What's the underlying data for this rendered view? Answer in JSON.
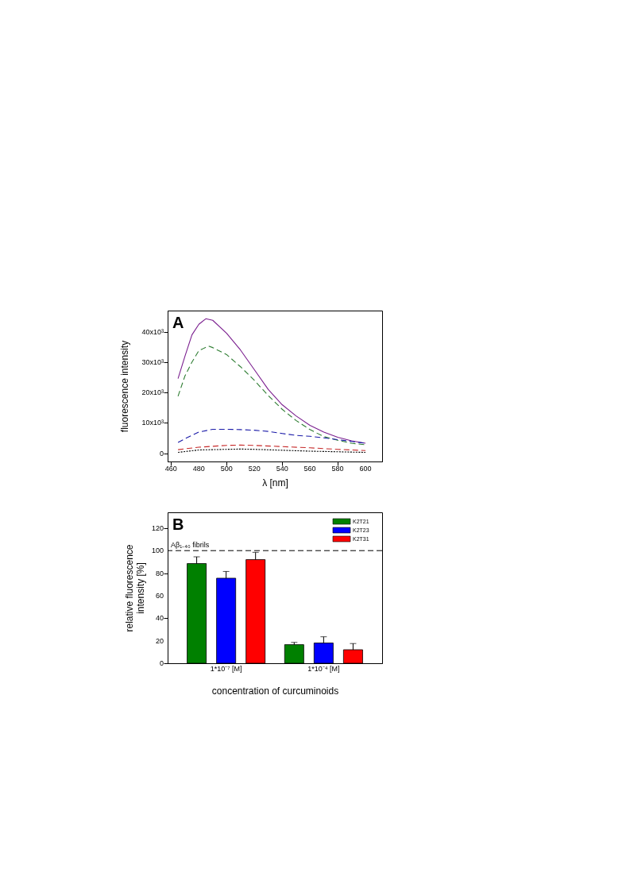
{
  "chart_data": [
    {
      "type": "line",
      "xlabel": "λ [nm]",
      "ylabel": "fluorescence intensity",
      "annotations": [
        "A"
      ],
      "xlim": [
        457.5,
        612
      ],
      "xticks": [
        460,
        480,
        500,
        520,
        540,
        560,
        580,
        600
      ],
      "ylim": [
        -2700,
        47000
      ],
      "yticks": [
        0,
        {
          "value": 10000,
          "label": "10x10³"
        },
        {
          "value": 20000,
          "label": "20x10³"
        },
        {
          "value": 30000,
          "label": "30x10³"
        },
        {
          "value": 40000,
          "label": "40x10³"
        }
      ],
      "grid": false,
      "legend": false,
      "marker": "none",
      "series": [
        {
          "color": "#7b1f8f",
          "line_style": "solid",
          "x": [
            465,
            470,
            475,
            480,
            485,
            490,
            500,
            510,
            520,
            530,
            540,
            550,
            560,
            570,
            580,
            590,
            600
          ],
          "values": [
            24600,
            32000,
            39000,
            42500,
            44300,
            43800,
            39500,
            34000,
            27500,
            21000,
            16000,
            12300,
            9200,
            7000,
            5300,
            4100,
            3300
          ]
        },
        {
          "color": "#2e7d32",
          "line_style": "dashed",
          "x": [
            465,
            470,
            475,
            480,
            487,
            490,
            500,
            510,
            520,
            530,
            540,
            550,
            560,
            570,
            580,
            590,
            600
          ],
          "values": [
            18800,
            25500,
            30000,
            33800,
            35300,
            34800,
            32500,
            28500,
            24000,
            19000,
            14500,
            10800,
            7800,
            5500,
            4300,
            3300,
            2800
          ]
        },
        {
          "color": "#1a1aa8",
          "line_style": "dashed",
          "x": [
            465,
            470,
            480,
            490,
            500,
            510,
            520,
            530,
            540,
            550,
            560,
            570,
            580,
            590,
            600
          ],
          "values": [
            3600,
            4800,
            7000,
            7900,
            7900,
            7800,
            7600,
            7200,
            6500,
            5900,
            5600,
            5100,
            4500,
            3900,
            3300
          ]
        },
        {
          "color": "#c62828",
          "line_style": "dashed",
          "x": [
            465,
            480,
            500,
            510,
            520,
            540,
            560,
            580,
            600
          ],
          "values": [
            1200,
            2000,
            2600,
            2700,
            2600,
            2200,
            1800,
            1300,
            900
          ]
        },
        {
          "color": "#000000",
          "line_style": "dotted",
          "x": [
            465,
            480,
            500,
            510,
            520,
            540,
            560,
            580,
            600
          ],
          "values": [
            300,
            1100,
            1300,
            1400,
            1300,
            1000,
            700,
            500,
            300
          ]
        }
      ]
    },
    {
      "type": "bar",
      "xlabel": "concentration of curcuminoids",
      "ylabel": "relative fluorescence intensity [%]",
      "annotations": [
        "B"
      ],
      "categories": [
        "1*10⁻⁷ [M]",
        "1*10⁻⁴ [M]"
      ],
      "ylim": [
        0,
        134
      ],
      "yticks": [
        0,
        20,
        40,
        60,
        80,
        100,
        120
      ],
      "grid": false,
      "legend": "top right",
      "ref_lines": [
        {
          "axis": "y",
          "value": 100,
          "label": "Aβ₁₋₄₀ fibrils",
          "line_style": "dashed",
          "color": "#000000"
        }
      ],
      "series": [
        {
          "name": "K2T21",
          "color": "#008000",
          "values": [
            88.5,
            16.5
          ],
          "errors": [
            [
              88.5,
              94.5
            ],
            [
              16.5,
              18.5
            ]
          ]
        },
        {
          "name": "K2T23",
          "color": "#0000ff",
          "values": [
            75.5,
            18
          ],
          "errors": [
            [
              75.5,
              81.5
            ],
            [
              18,
              23.5
            ]
          ]
        },
        {
          "name": "K2T31",
          "color": "#ff0000",
          "values": [
            92,
            12
          ],
          "errors": [
            [
              92,
              98.5
            ],
            [
              12,
              17.5
            ]
          ]
        }
      ]
    }
  ]
}
